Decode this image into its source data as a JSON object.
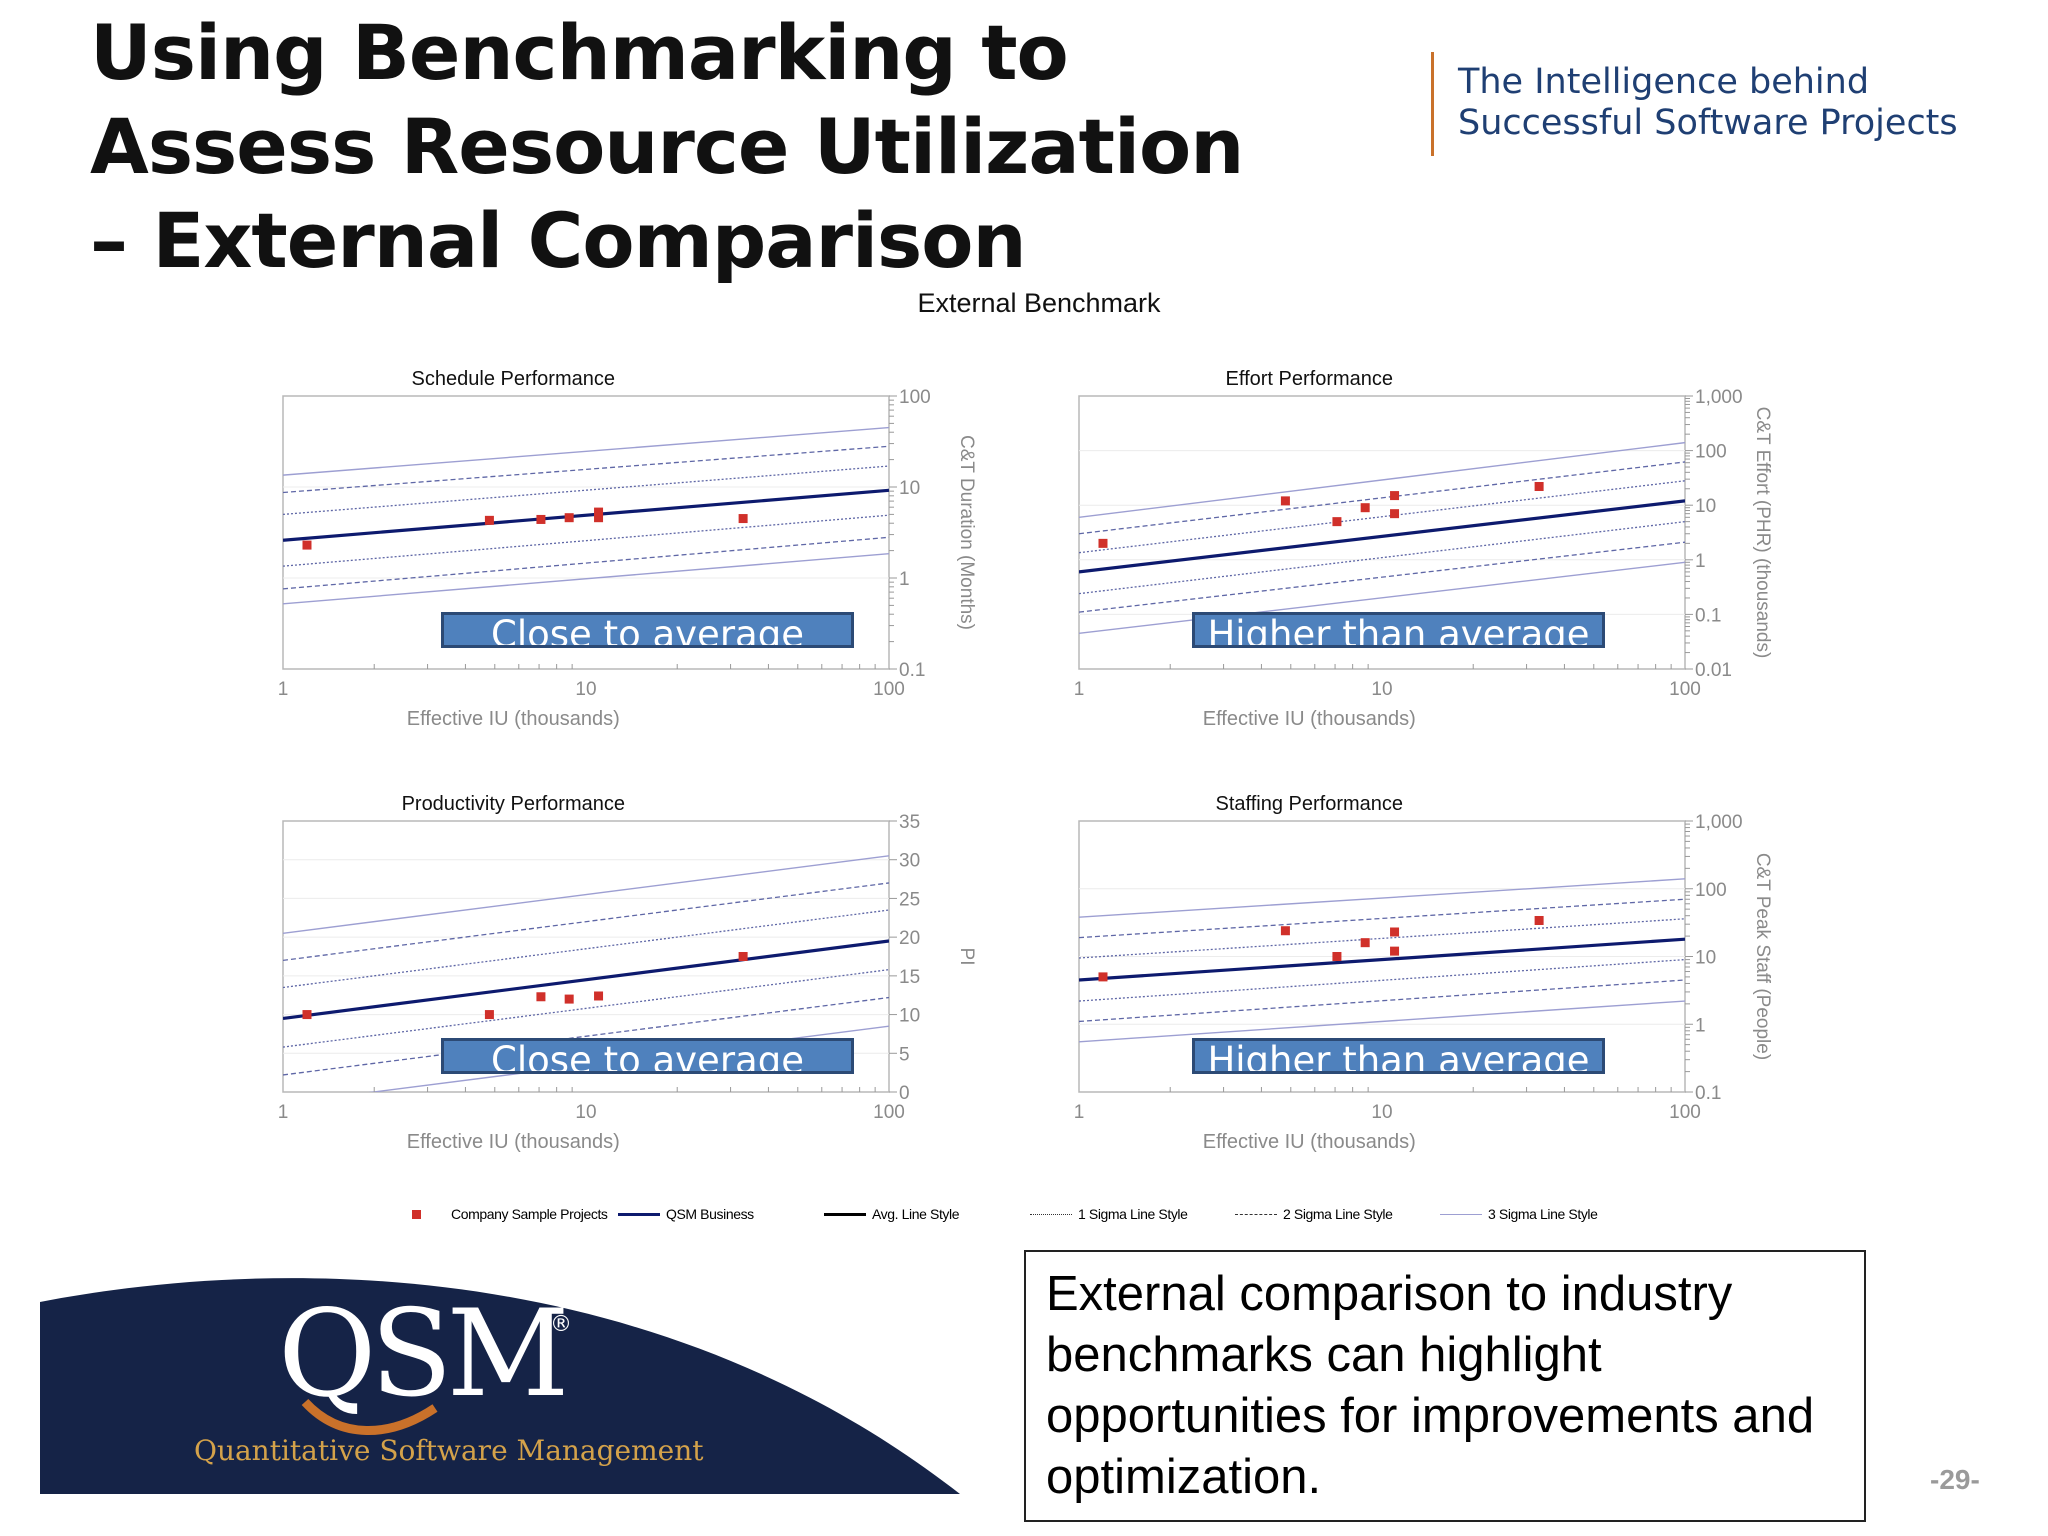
{
  "slide": {
    "title": "Using Benchmarking to Assess Resource Utilization – External Comparison",
    "tagline_line1": "The Intelligence behind",
    "tagline_line2": "Successful Software Projects",
    "benchmark_title": "External Benchmark",
    "note": "External comparison to industry benchmarks can highlight opportunities for improvements and optimization.",
    "page_number": "-29-"
  },
  "logo": {
    "wordmark": "QSM",
    "registered": "®",
    "subtitle": "Quantitative Software Management"
  },
  "callouts": {
    "schedule": "Close to average",
    "effort": "Higher than average",
    "productivity": "Close to average",
    "staffing": "Higher than average"
  },
  "legend": {
    "company": "Company Sample Projects",
    "qsm": "QSM Business",
    "avg": "Avg. Line Style",
    "sigma1": "1 Sigma Line Style",
    "sigma2": "2 Sigma Line Style",
    "sigma3": "3 Sigma Line Style"
  },
  "colors": {
    "avg_line": "#0d1a6e",
    "sigma_line": "#5f67a6",
    "sigma3_line": "#9d9fd2",
    "points": "#d0302a",
    "callout_fill": "#4f81bd",
    "logo_navy": "#152347",
    "tagline_text": "#1f3f73"
  },
  "chart_data": [
    {
      "type": "scatter",
      "title": "Schedule Performance",
      "xlabel": "Effective IU (thousands)",
      "ylabel": "C&T Duration (Months)",
      "xscale": "log",
      "yscale": "log",
      "xlim": [
        1,
        100
      ],
      "ylim": [
        0.1,
        100
      ],
      "xticks": [
        {
          "v": 1,
          "label": "1"
        },
        {
          "v": 10,
          "label": "10"
        },
        {
          "v": 100,
          "label": "100"
        }
      ],
      "yticks": [
        {
          "v": 0.1,
          "label": "0.1"
        },
        {
          "v": 1,
          "label": "1"
        },
        {
          "v": 10,
          "label": "10"
        },
        {
          "v": 100,
          "label": "100"
        }
      ],
      "y_axis_side": "right",
      "points": {
        "x": [
          1.2,
          4.8,
          7.1,
          8.8,
          11,
          11,
          33
        ],
        "y": [
          2.3,
          4.3,
          4.4,
          4.6,
          4.6,
          5.3,
          4.5
        ]
      },
      "avg_trend": [
        [
          1,
          2.6
        ],
        [
          100,
          9.2
        ]
      ],
      "sigma1": [
        [
          [
            1,
            5
          ],
          [
            100,
            17
          ]
        ],
        [
          [
            1,
            1.35
          ],
          [
            100,
            4.9
          ]
        ]
      ],
      "sigma2": [
        [
          [
            1,
            8.7
          ],
          [
            100,
            28
          ]
        ],
        [
          [
            1,
            0.76
          ],
          [
            100,
            2.8
          ]
        ]
      ],
      "sigma3": [
        [
          [
            1,
            13.5
          ],
          [
            100,
            45
          ]
        ],
        [
          [
            1,
            0.52
          ],
          [
            100,
            1.85
          ]
        ]
      ]
    },
    {
      "type": "scatter",
      "title": "Effort Performance",
      "xlabel": "Effective IU (thousands)",
      "ylabel": "C&T Effort (PHR) (thousands)",
      "xscale": "log",
      "yscale": "log",
      "xlim": [
        1,
        100
      ],
      "ylim": [
        0.01,
        1000
      ],
      "xticks": [
        {
          "v": 1,
          "label": "1"
        },
        {
          "v": 10,
          "label": "10"
        },
        {
          "v": 100,
          "label": "100"
        }
      ],
      "yticks": [
        {
          "v": 0.01,
          "label": "0.01"
        },
        {
          "v": 0.1,
          "label": "0.1"
        },
        {
          "v": 1,
          "label": "1"
        },
        {
          "v": 10,
          "label": "10"
        },
        {
          "v": 100,
          "label": "100"
        },
        {
          "v": 1000,
          "label": "1,000"
        }
      ],
      "y_axis_side": "right",
      "points": {
        "x": [
          1.2,
          4.8,
          7.1,
          8.8,
          11,
          11,
          33
        ],
        "y": [
          2,
          12,
          5,
          9,
          7,
          15,
          22
        ]
      },
      "avg_trend": [
        [
          1,
          0.6
        ],
        [
          100,
          12
        ]
      ],
      "sigma1": [
        [
          [
            1,
            1.35
          ],
          [
            100,
            28
          ]
        ],
        [
          [
            1,
            0.24
          ],
          [
            100,
            5
          ]
        ]
      ],
      "sigma2": [
        [
          [
            1,
            3
          ],
          [
            100,
            62
          ]
        ],
        [
          [
            1,
            0.11
          ],
          [
            100,
            2.1
          ]
        ]
      ],
      "sigma3": [
        [
          [
            1,
            6
          ],
          [
            100,
            140
          ]
        ],
        [
          [
            1,
            0.045
          ],
          [
            100,
            0.9
          ]
        ]
      ]
    },
    {
      "type": "scatter",
      "title": "Productivity Performance",
      "xlabel": "Effective IU (thousands)",
      "ylabel": "PI",
      "xscale": "log",
      "yscale": "linear",
      "xlim": [
        1,
        100
      ],
      "ylim": [
        0,
        35
      ],
      "xticks": [
        {
          "v": 1,
          "label": "1"
        },
        {
          "v": 10,
          "label": "10"
        },
        {
          "v": 100,
          "label": "100"
        }
      ],
      "yticks": [
        {
          "v": 0,
          "label": "0"
        },
        {
          "v": 5,
          "label": "5"
        },
        {
          "v": 10,
          "label": "10"
        },
        {
          "v": 15,
          "label": "15"
        },
        {
          "v": 20,
          "label": "20"
        },
        {
          "v": 25,
          "label": "25"
        },
        {
          "v": 30,
          "label": "30"
        },
        {
          "v": 35,
          "label": "35"
        }
      ],
      "y_axis_side": "right",
      "points": {
        "x": [
          1.2,
          4.8,
          7.1,
          8.8,
          11,
          33
        ],
        "y": [
          10,
          10,
          12.3,
          12,
          12.4,
          17.5
        ]
      },
      "avg_trend": [
        [
          1,
          9.5
        ],
        [
          100,
          19.5
        ]
      ],
      "sigma1": [
        [
          [
            1,
            13.5
          ],
          [
            100,
            23.5
          ]
        ],
        [
          [
            1,
            5.8
          ],
          [
            100,
            15.8
          ]
        ]
      ],
      "sigma2": [
        [
          [
            1,
            17
          ],
          [
            100,
            27
          ]
        ],
        [
          [
            1,
            2.2
          ],
          [
            100,
            12.2
          ]
        ]
      ],
      "sigma3": [
        [
          [
            1,
            20.5
          ],
          [
            100,
            30.5
          ]
        ],
        [
          [
            1,
            -1.5
          ],
          [
            100,
            8.5
          ]
        ]
      ]
    },
    {
      "type": "scatter",
      "title": "Staffing Performance",
      "xlabel": "Effective IU (thousands)",
      "ylabel": "C&T Peak Staff (People)",
      "xscale": "log",
      "yscale": "log",
      "xlim": [
        1,
        100
      ],
      "ylim": [
        0.1,
        1000
      ],
      "xticks": [
        {
          "v": 1,
          "label": "1"
        },
        {
          "v": 10,
          "label": "10"
        },
        {
          "v": 100,
          "label": "100"
        }
      ],
      "yticks": [
        {
          "v": 0.1,
          "label": "0.1"
        },
        {
          "v": 1,
          "label": "1"
        },
        {
          "v": 10,
          "label": "10"
        },
        {
          "v": 100,
          "label": "100"
        },
        {
          "v": 1000,
          "label": "1,000"
        }
      ],
      "y_axis_side": "right",
      "points": {
        "x": [
          1.2,
          4.8,
          7.1,
          8.8,
          11,
          11,
          33
        ],
        "y": [
          5,
          24,
          10,
          16,
          12,
          23,
          34
        ]
      },
      "avg_trend": [
        [
          1,
          4.5
        ],
        [
          100,
          18
        ]
      ],
      "sigma1": [
        [
          [
            1,
            9.5
          ],
          [
            100,
            36
          ]
        ],
        [
          [
            1,
            2.2
          ],
          [
            100,
            9
          ]
        ]
      ],
      "sigma2": [
        [
          [
            1,
            19
          ],
          [
            100,
            70
          ]
        ],
        [
          [
            1,
            1.1
          ],
          [
            100,
            4.5
          ]
        ]
      ],
      "sigma3": [
        [
          [
            1,
            38
          ],
          [
            100,
            140
          ]
        ],
        [
          [
            1,
            0.55
          ],
          [
            100,
            2.2
          ]
        ]
      ]
    }
  ]
}
